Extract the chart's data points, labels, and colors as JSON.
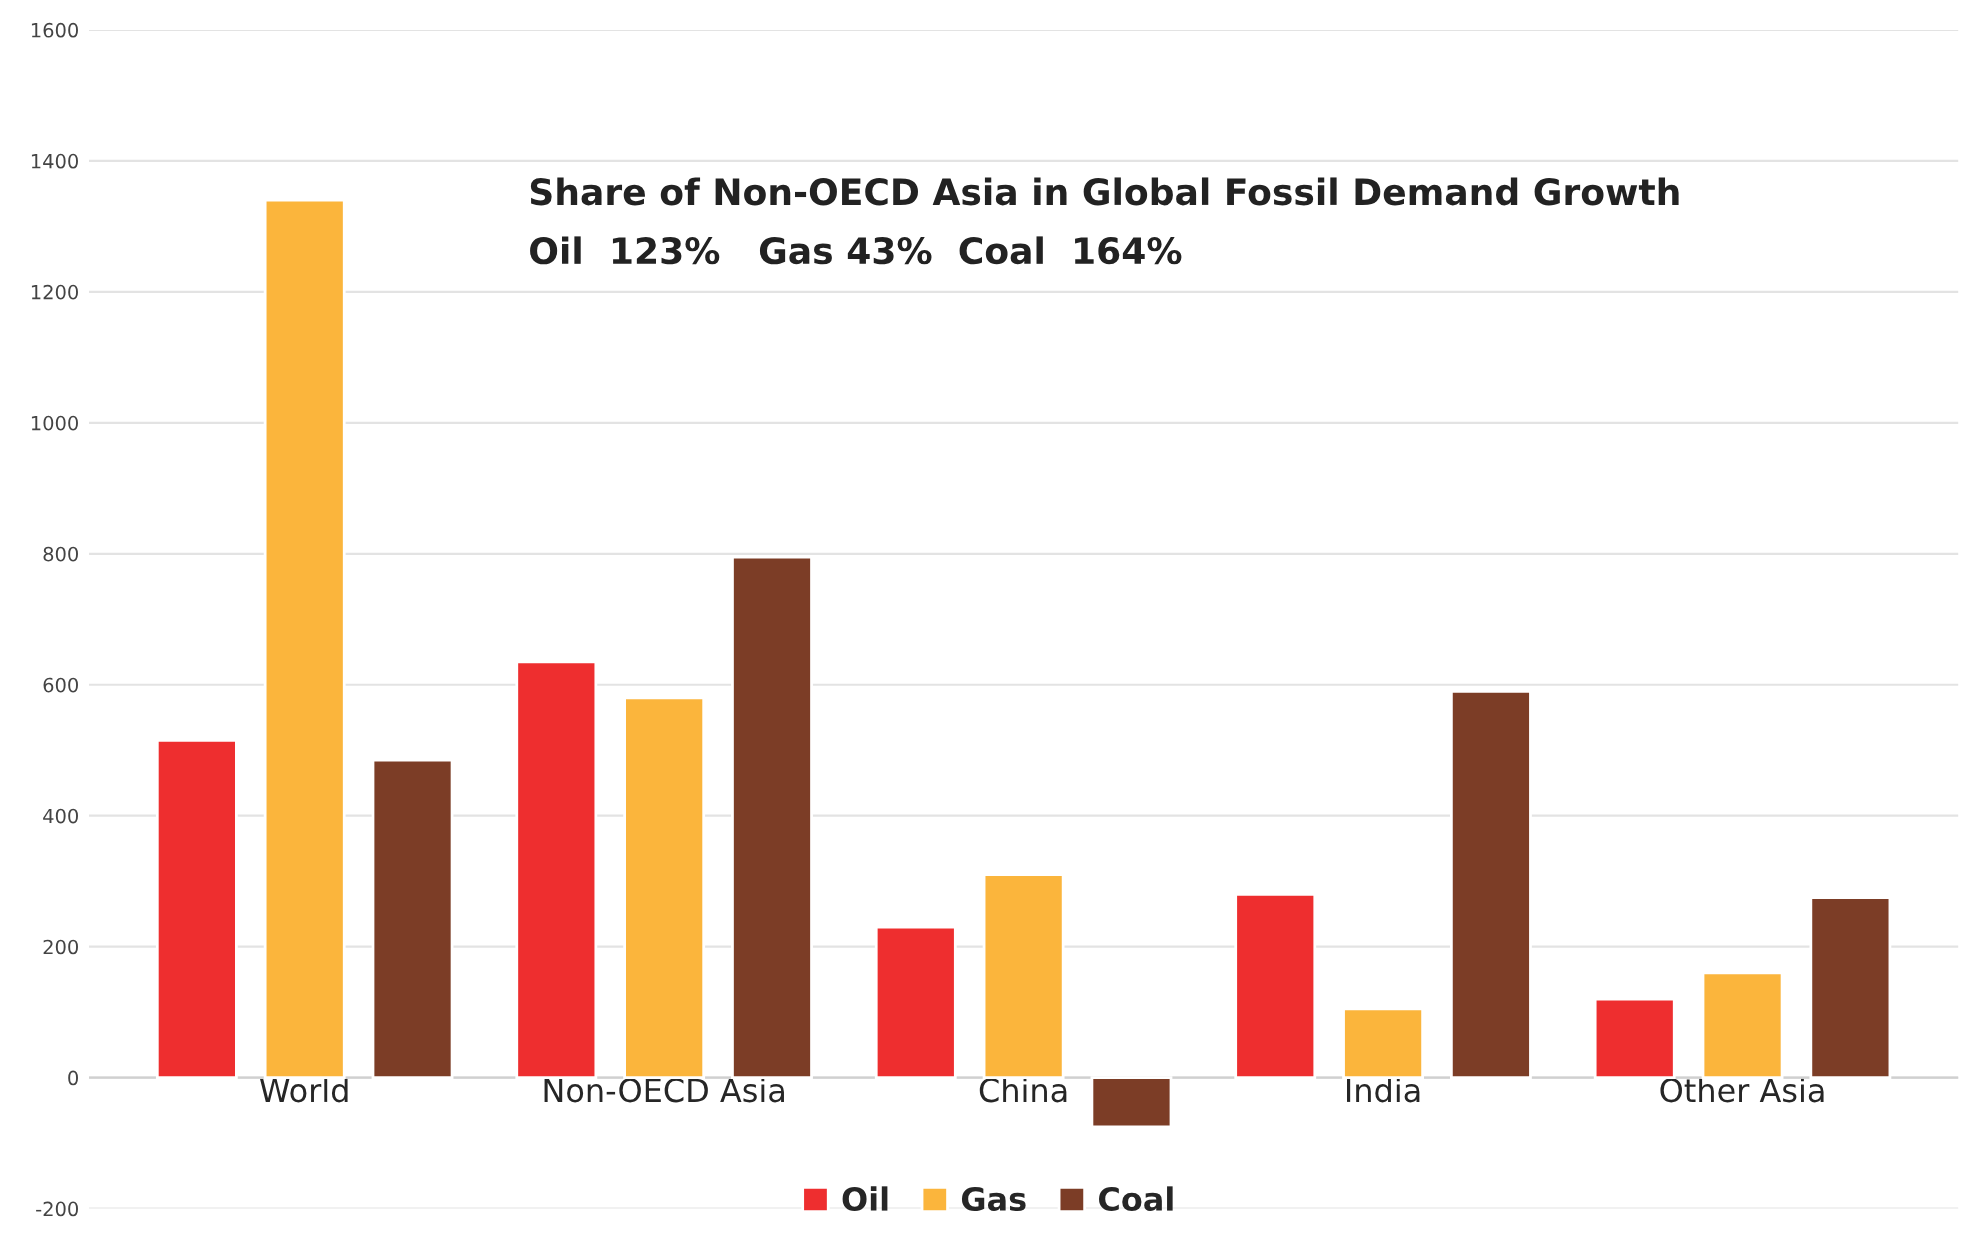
{
  "chart_data": {
    "type": "bar",
    "categories": [
      "World",
      "Non-OECD Asia",
      "China",
      "India",
      "Other Asia"
    ],
    "series": [
      {
        "name": "Oil",
        "color": "#ee2e2f",
        "values": [
          515,
          635,
          230,
          280,
          120
        ]
      },
      {
        "name": "Gas",
        "color": "#fbb53c",
        "values": [
          1340,
          580,
          310,
          105,
          160
        ]
      },
      {
        "name": "Coal",
        "color": "#7c3d26",
        "values": [
          485,
          795,
          -75,
          590,
          275
        ]
      }
    ],
    "ylim": [
      -200,
      1600
    ],
    "yticks": [
      -200,
      0,
      200,
      400,
      600,
      800,
      1000,
      1200,
      1400,
      1600
    ],
    "grid": "y",
    "legend": "bottom",
    "annotations": [
      "Share of Non-OECD Asia in Global Fossil Demand Growth",
      "Oil  123%   Gas 43%  Coal  164%"
    ]
  }
}
